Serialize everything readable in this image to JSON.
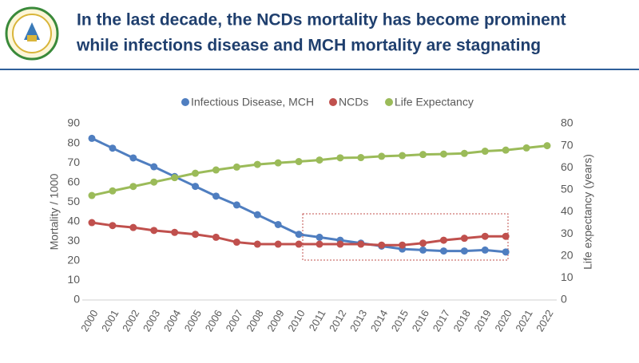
{
  "header": {
    "title": [
      "In the last decade, the NCDs mortality has become prominent",
      "while infections disease and MCH mortality are stagnating"
    ]
  },
  "chart_data": {
    "type": "line",
    "categories": [
      "2000",
      "2001",
      "2002",
      "2003",
      "2004",
      "2005",
      "2006",
      "2007",
      "2008",
      "2009",
      "2010",
      "2011",
      "2012",
      "2013",
      "2014",
      "2015",
      "2016",
      "2017",
      "2018",
      "2019",
      "2020",
      "2021",
      "2022"
    ],
    "series": [
      {
        "name": "Infectious Disease, MCH",
        "color": "#4f7ec0",
        "values": [
          82.5,
          77.5,
          72.5,
          68,
          63,
          58,
          53,
          48.5,
          43.5,
          38.5,
          33.5,
          32,
          30.5,
          29,
          27.5,
          26,
          25.5,
          25,
          25,
          25.5,
          24.5,
          null,
          null
        ]
      },
      {
        "name": "NCDs",
        "color": "#c0504d",
        "values": [
          39.5,
          38,
          37,
          35.5,
          34.5,
          33.5,
          32,
          29.5,
          28.5,
          28.5,
          28.5,
          28.5,
          28.5,
          28.5,
          28,
          28,
          29,
          30.5,
          31.5,
          32.5,
          32.5,
          null,
          null
        ]
      },
      {
        "name": "Life Expectancy",
        "color": "#9bbb59",
        "axis": "y2",
        "values": [
          47.4,
          49.5,
          51.5,
          53.5,
          55.5,
          57.5,
          59,
          60.3,
          61.5,
          62.2,
          62.8,
          63.5,
          64.5,
          64.6,
          65.2,
          65.5,
          66,
          66.2,
          66.5,
          67.5,
          68,
          69,
          70
        ]
      }
    ],
    "y_label": "Mortality / 1000",
    "y2_label": "Life expectancy (years)",
    "ylim": [
      0,
      90
    ],
    "yticks": [
      0,
      10,
      20,
      30,
      40,
      50,
      60,
      70,
      80,
      90
    ],
    "y2lim": [
      0,
      80
    ],
    "y2ticks": [
      0,
      10,
      20,
      30,
      40,
      50,
      60,
      70,
      80
    ],
    "legend": "top",
    "grid": false
  }
}
